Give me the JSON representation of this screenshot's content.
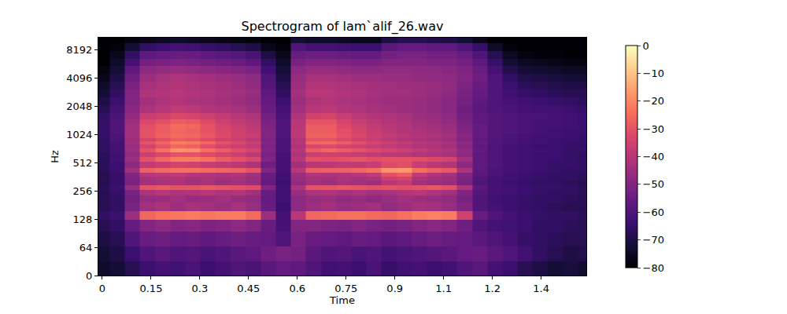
{
  "chart_data": {
    "type": "heatmap",
    "title": "Spectrogram of lam`alif_26.wav",
    "x_label": "Time",
    "y_label": "Hz",
    "log": "y",
    "xlim": [
      -0.012,
      1.489
    ],
    "xticks": [
      0,
      0.15,
      0.3,
      0.45,
      0.6,
      0.75,
      0.9,
      {
        "value": 1.05,
        "label": "1.1"
      },
      1.2,
      {
        "value": 1.35,
        "label": "1.4"
      }
    ],
    "ylim": [
      0,
      11025
    ],
    "yticks": [
      0,
      64,
      128,
      256,
      512,
      1024,
      2048,
      4096,
      8192
    ],
    "colorbar_range": [
      -80,
      0
    ],
    "colorbar_ticks": [
      0,
      {
        "value": -10,
        "label": "−10"
      },
      {
        "value": -20,
        "label": "−20"
      },
      {
        "value": -30,
        "label": "−30"
      },
      {
        "value": -40,
        "label": "−40"
      },
      {
        "value": -50,
        "label": "−50"
      },
      {
        "value": -60,
        "label": "−60"
      },
      {
        "value": -70,
        "label": "−70"
      },
      {
        "value": -80,
        "label": "−80"
      }
    ],
    "x": [
      0,
      0.046,
      0.093,
      0.139,
      0.186,
      0.232,
      0.279,
      0.325,
      0.372,
      0.418,
      0.464,
      0.511,
      0.557,
      0.604,
      0.65,
      0.697,
      0.743,
      0.789,
      0.836,
      0.882,
      0.929,
      0.975,
      1.022,
      1.068,
      1.115,
      1.161,
      1.208,
      1.254,
      1.3,
      1.347,
      1.393,
      1.44,
      1.486
    ],
    "y": [
      16,
      48,
      80,
      112,
      140,
      175,
      210,
      245,
      280,
      315,
      350,
      385,
      420,
      490,
      560,
      630,
      700,
      770,
      840,
      910,
      980,
      1120,
      1260,
      1400,
      1600,
      1900,
      2300,
      2800,
      3400,
      4100,
      5000,
      6000,
      7300,
      8800,
      10500
    ],
    "z": [
      [
        -74,
        -72,
        -68,
        -64,
        -62,
        -63,
        -61,
        -64,
        -62,
        -60,
        -61,
        -58,
        -56,
        -57,
        -60,
        -63,
        -62,
        -64,
        -61,
        -65,
        -63,
        -62,
        -64,
        -63,
        -60,
        -58,
        -62,
        -64,
        -68,
        -70,
        -72,
        -71,
        -73
      ],
      [
        -72,
        -70,
        -64,
        -60,
        -58,
        -60,
        -59,
        -61,
        -60,
        -58,
        -57,
        -54,
        -52,
        -53,
        -58,
        -60,
        -59,
        -61,
        -60,
        -62,
        -61,
        -60,
        -59,
        -58,
        -56,
        -55,
        -58,
        -60,
        -63,
        -66,
        -68,
        -70,
        -69
      ],
      [
        -70,
        -68,
        -60,
        -55,
        -54,
        -56,
        -55,
        -57,
        -55,
        -54,
        -55,
        -56,
        -60,
        -52,
        -55,
        -56,
        -57,
        -55,
        -56,
        -58,
        -57,
        -55,
        -54,
        -55,
        -56,
        -58,
        -60,
        -62,
        -65,
        -66,
        -67,
        -68,
        -68
      ],
      [
        -68,
        -66,
        -56,
        -50,
        -48,
        -50,
        -49,
        -51,
        -50,
        -48,
        -50,
        -55,
        -62,
        -50,
        -50,
        -51,
        -52,
        -50,
        -52,
        -53,
        -52,
        -50,
        -49,
        -50,
        -54,
        -60,
        -62,
        -63,
        -64,
        -66,
        -66,
        -67,
        -68
      ],
      [
        -66,
        -64,
        -45,
        -26,
        -24,
        -23,
        -22,
        -23,
        -22,
        -22,
        -25,
        -45,
        -62,
        -40,
        -26,
        -25,
        -24,
        -24,
        -25,
        -26,
        -24,
        -22,
        -21,
        -22,
        -35,
        -55,
        -60,
        -62,
        -64,
        -65,
        -66,
        -66,
        -67
      ],
      [
        -68,
        -66,
        -52,
        -44,
        -42,
        -45,
        -43,
        -44,
        -45,
        -43,
        -46,
        -55,
        -64,
        -48,
        -45,
        -44,
        -46,
        -45,
        -44,
        -47,
        -45,
        -43,
        -44,
        -46,
        -50,
        -60,
        -62,
        -64,
        -65,
        -66,
        -67,
        -68,
        -68
      ],
      [
        -68,
        -66,
        -53,
        -46,
        -45,
        -44,
        -46,
        -45,
        -44,
        -46,
        -47,
        -56,
        -63,
        -48,
        -46,
        -45,
        -47,
        -46,
        -48,
        -46,
        -44,
        -45,
        -46,
        -47,
        -52,
        -60,
        -63,
        -64,
        -65,
        -66,
        -66,
        -67,
        -68
      ],
      [
        -68,
        -65,
        -52,
        -42,
        -40,
        -42,
        -41,
        -40,
        -42,
        -41,
        -44,
        -55,
        -63,
        -46,
        -42,
        -41,
        -43,
        -42,
        -44,
        -43,
        -41,
        -40,
        -42,
        -44,
        -50,
        -59,
        -62,
        -63,
        -64,
        -65,
        -66,
        -66,
        -67
      ],
      [
        -67,
        -64,
        -46,
        -30,
        -29,
        -30,
        -30,
        -29,
        -30,
        -31,
        -32,
        -50,
        -63,
        -42,
        -30,
        -30,
        -29,
        -30,
        -31,
        -30,
        -31,
        -30,
        -29,
        -31,
        -42,
        -58,
        -62,
        -63,
        -64,
        -65,
        -65,
        -66,
        -67
      ],
      [
        -68,
        -65,
        -52,
        -44,
        -43,
        -42,
        -44,
        -43,
        -45,
        -44,
        -46,
        -56,
        -64,
        -47,
        -44,
        -45,
        -43,
        -44,
        -45,
        -40,
        -38,
        -44,
        -45,
        -46,
        -52,
        -60,
        -62,
        -64,
        -65,
        -66,
        -66,
        -67,
        -68
      ],
      [
        -68,
        -65,
        -51,
        -43,
        -42,
        -41,
        -43,
        -42,
        -44,
        -43,
        -45,
        -55,
        -63,
        -46,
        -43,
        -44,
        -42,
        -43,
        -42,
        -36,
        -34,
        -42,
        -44,
        -45,
        -51,
        -59,
        -62,
        -63,
        -64,
        -65,
        -66,
        -66,
        -67
      ],
      [
        -68,
        -65,
        -50,
        -40,
        -39,
        -38,
        -40,
        -41,
        -42,
        -41,
        -44,
        -55,
        -63,
        -45,
        -41,
        -42,
        -41,
        -40,
        -38,
        -30,
        -28,
        -38,
        -41,
        -43,
        -50,
        -58,
        -61,
        -63,
        -64,
        -65,
        -66,
        -66,
        -67
      ],
      [
        -67,
        -64,
        -44,
        -27,
        -25,
        -24,
        -24,
        -25,
        -26,
        -27,
        -30,
        -50,
        -62,
        -40,
        -28,
        -27,
        -27,
        -26,
        -24,
        -18,
        -17,
        -24,
        -27,
        -29,
        -42,
        -57,
        -61,
        -62,
        -63,
        -64,
        -65,
        -66,
        -66
      ],
      [
        -67,
        -64,
        -48,
        -38,
        -36,
        -34,
        -35,
        -37,
        -38,
        -39,
        -42,
        -54,
        -62,
        -44,
        -40,
        -39,
        -38,
        -38,
        -37,
        -32,
        -31,
        -37,
        -39,
        -41,
        -48,
        -57,
        -60,
        -62,
        -63,
        -64,
        -65,
        -65,
        -66
      ],
      [
        -67,
        -63,
        -45,
        -30,
        -26,
        -22,
        -22,
        -24,
        -28,
        -30,
        -33,
        -50,
        -62,
        -40,
        -30,
        -31,
        -30,
        -29,
        -31,
        -30,
        -30,
        -31,
        -32,
        -34,
        -44,
        -57,
        -60,
        -62,
        -63,
        -64,
        -64,
        -65,
        -66
      ],
      [
        -67,
        -63,
        -47,
        -36,
        -33,
        -30,
        -30,
        -32,
        -34,
        -36,
        -39,
        -52,
        -62,
        -42,
        -36,
        -35,
        -36,
        -37,
        -38,
        -39,
        -40,
        -41,
        -42,
        -43,
        -48,
        -57,
        -60,
        -62,
        -63,
        -64,
        -64,
        -65,
        -66
      ],
      [
        -66,
        -62,
        -45,
        -30,
        -24,
        -18,
        -19,
        -24,
        -28,
        -31,
        -34,
        -50,
        -61,
        -40,
        -28,
        -26,
        -28,
        -30,
        -32,
        -34,
        -36,
        -38,
        -40,
        -42,
        -47,
        -56,
        -60,
        -62,
        -63,
        -63,
        -64,
        -65,
        -65
      ],
      [
        -66,
        -62,
        -46,
        -34,
        -30,
        -26,
        -27,
        -31,
        -34,
        -36,
        -38,
        -51,
        -61,
        -42,
        -33,
        -32,
        -34,
        -35,
        -37,
        -38,
        -40,
        -41,
        -42,
        -44,
        -49,
        -57,
        -60,
        -62,
        -63,
        -64,
        -64,
        -65,
        -66
      ],
      [
        -66,
        -62,
        -44,
        -30,
        -26,
        -22,
        -23,
        -26,
        -30,
        -33,
        -36,
        -50,
        -61,
        -40,
        -26,
        -25,
        -28,
        -31,
        -34,
        -36,
        -38,
        -40,
        -41,
        -43,
        -48,
        -56,
        -60,
        -61,
        -62,
        -63,
        -64,
        -65,
        -65
      ],
      [
        -66,
        -61,
        -45,
        -34,
        -31,
        -28,
        -29,
        -32,
        -35,
        -37,
        -39,
        -51,
        -61,
        -41,
        -30,
        -30,
        -33,
        -35,
        -37,
        -39,
        -41,
        -42,
        -43,
        -45,
        -50,
        -57,
        -60,
        -61,
        -62,
        -63,
        -64,
        -64,
        -65
      ],
      [
        -65,
        -61,
        -44,
        -30,
        -27,
        -25,
        -26,
        -29,
        -32,
        -35,
        -37,
        -50,
        -60,
        -39,
        -27,
        -27,
        -30,
        -33,
        -36,
        -38,
        -40,
        -41,
        -42,
        -44,
        -49,
        -56,
        -59,
        -61,
        -62,
        -63,
        -63,
        -64,
        -65
      ],
      [
        -65,
        -60,
        -44,
        -30,
        -28,
        -26,
        -27,
        -30,
        -33,
        -35,
        -38,
        -50,
        -60,
        -39,
        -28,
        -28,
        -31,
        -34,
        -37,
        -39,
        -41,
        -42,
        -43,
        -45,
        -50,
        -56,
        -59,
        -60,
        -61,
        -62,
        -63,
        -64,
        -64
      ],
      [
        -65,
        -60,
        -44,
        -31,
        -28,
        -25,
        -26,
        -30,
        -34,
        -36,
        -39,
        -51,
        -60,
        -40,
        -28,
        -28,
        -32,
        -35,
        -38,
        -40,
        -41,
        -43,
        -44,
        -46,
        -51,
        -56,
        -59,
        -60,
        -61,
        -62,
        -62,
        -63,
        -64
      ],
      [
        -65,
        -60,
        -45,
        -33,
        -31,
        -28,
        -29,
        -32,
        -36,
        -38,
        -40,
        -52,
        -60,
        -40,
        -30,
        -30,
        -34,
        -37,
        -39,
        -41,
        -42,
        -44,
        -45,
        -47,
        -52,
        -57,
        -59,
        -60,
        -61,
        -62,
        -62,
        -63,
        -64
      ],
      [
        -66,
        -61,
        -47,
        -37,
        -35,
        -33,
        -34,
        -36,
        -38,
        -40,
        -42,
        -53,
        -61,
        -42,
        -35,
        -34,
        -37,
        -39,
        -41,
        -42,
        -43,
        -45,
        -46,
        -48,
        -53,
        -57,
        -59,
        -60,
        -61,
        -61,
        -62,
        -63,
        -64
      ],
      [
        -68,
        -62,
        -49,
        -42,
        -40,
        -38,
        -39,
        -41,
        -42,
        -43,
        -45,
        -55,
        -62,
        -44,
        -40,
        -39,
        -41,
        -42,
        -43,
        -44,
        -45,
        -46,
        -47,
        -49,
        -54,
        -58,
        -60,
        -61,
        -62,
        -63,
        -63,
        -64,
        -65
      ],
      [
        -70,
        -64,
        -50,
        -44,
        -42,
        -41,
        -42,
        -43,
        -44,
        -45,
        -47,
        -56,
        -64,
        -45,
        -42,
        -41,
        -42,
        -43,
        -44,
        -45,
        -45,
        -46,
        -47,
        -49,
        -53,
        -57,
        -60,
        -62,
        -63,
        -64,
        -65,
        -66,
        -67
      ],
      [
        -72,
        -66,
        -50,
        -42,
        -41,
        -40,
        -41,
        -42,
        -43,
        -44,
        -46,
        -57,
        -66,
        -44,
        -40,
        -40,
        -41,
        -42,
        -43,
        -44,
        -44,
        -45,
        -46,
        -48,
        -52,
        -56,
        -60,
        -63,
        -65,
        -66,
        -67,
        -68,
        -68
      ],
      [
        -74,
        -68,
        -52,
        -43,
        -42,
        -41,
        -42,
        -43,
        -44,
        -45,
        -47,
        -59,
        -68,
        -45,
        -41,
        -41,
        -42,
        -43,
        -44,
        -44,
        -45,
        -45,
        -46,
        -47,
        -51,
        -55,
        -60,
        -64,
        -67,
        -68,
        -69,
        -70,
        -70
      ],
      [
        -76,
        -70,
        -54,
        -45,
        -43,
        -42,
        -43,
        -44,
        -45,
        -46,
        -48,
        -60,
        -70,
        -46,
        -43,
        -43,
        -44,
        -45,
        -45,
        -46,
        -46,
        -47,
        -47,
        -48,
        -50,
        -54,
        -60,
        -66,
        -69,
        -70,
        -71,
        -72,
        -72
      ],
      [
        -78,
        -72,
        -57,
        -48,
        -47,
        -46,
        -47,
        -48,
        -49,
        -50,
        -52,
        -63,
        -72,
        -48,
        -46,
        -46,
        -47,
        -48,
        -48,
        -47,
        -47,
        -48,
        -48,
        -49,
        -51,
        -55,
        -62,
        -69,
        -72,
        -73,
        -74,
        -75,
        -75
      ],
      [
        -80,
        -74,
        -62,
        -53,
        -52,
        -51,
        -52,
        -53,
        -54,
        -55,
        -57,
        -66,
        -74,
        -52,
        -50,
        -50,
        -51,
        -52,
        -52,
        -50,
        -50,
        -50,
        -51,
        -51,
        -53,
        -57,
        -65,
        -72,
        -75,
        -76,
        -77,
        -78,
        -78
      ],
      [
        -80,
        -76,
        -66,
        -57,
        -56,
        -55,
        -55,
        -57,
        -58,
        -59,
        -61,
        -70,
        -76,
        -55,
        -54,
        -54,
        -55,
        -56,
        -56,
        -53,
        -52,
        -52,
        -53,
        -53,
        -55,
        -60,
        -68,
        -75,
        -78,
        -79,
        -79,
        -80,
        -80
      ],
      [
        -80,
        -79,
        -72,
        -66,
        -64,
        -62,
        -63,
        -65,
        -66,
        -68,
        -70,
        -76,
        -79,
        -60,
        -62,
        -62,
        -63,
        -64,
        -64,
        -58,
        -56,
        -56,
        -57,
        -57,
        -60,
        -65,
        -74,
        -79,
        -80,
        -80,
        -80,
        -80,
        -80
      ],
      [
        -80,
        -80,
        -78,
        -76,
        -75,
        -74,
        -75,
        -76,
        -77,
        -78,
        -78,
        -80,
        -80,
        -72,
        -74,
        -74,
        -75,
        -76,
        -76,
        -70,
        -68,
        -68,
        -69,
        -70,
        -72,
        -76,
        -80,
        -80,
        -80,
        -80,
        -80,
        -80,
        -80
      ]
    ]
  }
}
